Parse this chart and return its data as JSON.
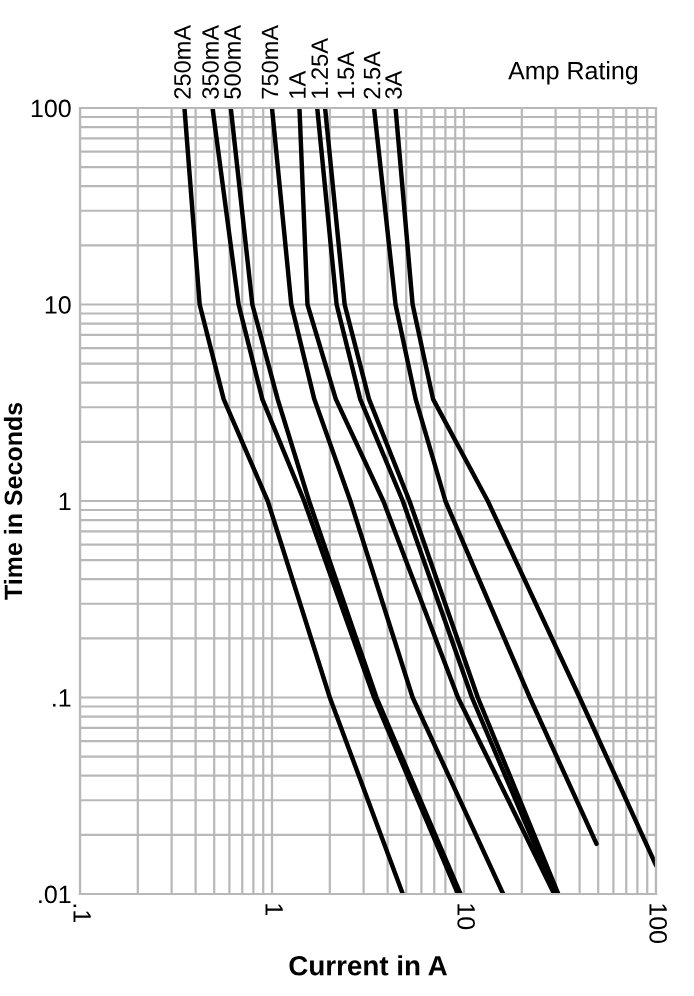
{
  "chart_data": {
    "type": "line",
    "xlabel": "Current in A",
    "ylabel": "Time in Seconds",
    "legend_title": "Amp Rating",
    "log": "xy",
    "grid": true,
    "legend": false,
    "marker": "none",
    "line_style": "solid",
    "xlim": [
      0.1,
      100
    ],
    "ylim": [
      0.01,
      100
    ],
    "xticks": [
      {
        "value": 0.1,
        "label": ".1"
      },
      1,
      10,
      100
    ],
    "yticks": [
      {
        "value": 0.01,
        "label": ".01"
      },
      {
        "value": 0.1,
        "label": ".1"
      },
      1,
      10,
      100
    ],
    "series": [
      {
        "name": "250mA",
        "color": "#000000",
        "x": [
          0.35,
          0.42,
          0.56,
          0.95,
          2.0,
          4.8
        ],
        "values": [
          100,
          10,
          3.3,
          1,
          0.1,
          0.01
        ]
      },
      {
        "name": "350mA",
        "color": "#000000",
        "x": [
          0.49,
          0.67,
          0.89,
          1.47,
          3.4,
          9.3
        ],
        "values": [
          100,
          10,
          3.3,
          1,
          0.1,
          0.01
        ]
      },
      {
        "name": "500mA",
        "color": "#000000",
        "x": [
          0.61,
          0.79,
          1.07,
          1.56,
          3.5,
          9.6
        ],
        "values": [
          100,
          10,
          3.3,
          1,
          0.1,
          0.01
        ]
      },
      {
        "name": "750mA",
        "color": "#000000",
        "x": [
          1.0,
          1.26,
          1.66,
          2.56,
          5.4,
          16
        ],
        "values": [
          100,
          10,
          3.3,
          1,
          0.1,
          0.01
        ]
      },
      {
        "name": "1A",
        "color": "#000000",
        "x": [
          1.39,
          1.53,
          2.15,
          3.8,
          9.3,
          29.5
        ],
        "values": [
          100,
          10,
          3.3,
          1,
          0.1,
          0.01
        ]
      },
      {
        "name": "1.25A",
        "color": "#000000",
        "x": [
          1.72,
          2.17,
          2.88,
          4.8,
          11,
          30
        ],
        "values": [
          100,
          10,
          3.3,
          1,
          0.1,
          0.01
        ]
      },
      {
        "name": "1.5A",
        "color": "#000000",
        "x": [
          1.89,
          2.39,
          3.2,
          5.2,
          11.8,
          31
        ],
        "values": [
          100,
          10,
          3.3,
          1,
          0.1,
          0.01
        ]
      },
      {
        "name": "2.5A",
        "color": "#000000",
        "x": [
          3.4,
          4.4,
          5.6,
          8.0,
          22,
          49
        ],
        "values": [
          100,
          10,
          3.3,
          1,
          0.1,
          0.018
        ]
      },
      {
        "name": "3A",
        "color": "#000000",
        "x": [
          4.4,
          5.4,
          6.9,
          13.3,
          40,
          100
        ],
        "values": [
          100,
          10,
          3.3,
          1,
          0.1,
          0.014
        ]
      }
    ]
  }
}
